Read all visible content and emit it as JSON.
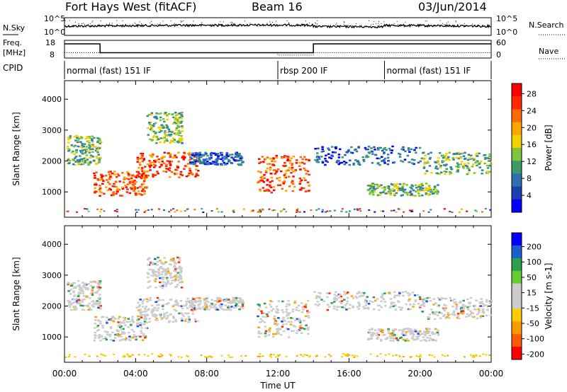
{
  "header": {
    "title": "Fort Hays West (fitACF)",
    "beam": "Beam 16",
    "date": "03/Jun/2014"
  },
  "chart_data": [
    {
      "type": "line",
      "name": "noise-panel",
      "left_label": "N.Sky",
      "right_label": "N.Search",
      "left_ticks": [
        "10^5",
        "10^0"
      ],
      "right_ticks": [
        "10^5",
        "10^0"
      ],
      "note": "N.Sky plotted as solid dotted trace; N.Search as dotted"
    },
    {
      "type": "line",
      "name": "freq-nave-panel",
      "left_label": "Freq.",
      "left_unit": "[MHz]",
      "left_ticks": [
        "18",
        "8"
      ],
      "right_label": "Nave",
      "right_ticks": [
        "60",
        "0"
      ],
      "freq_steps": [
        {
          "from_hour": 0,
          "to_hour": 2,
          "value": 16
        },
        {
          "from_hour": 2,
          "to_hour": 12,
          "value": 11
        },
        {
          "from_hour": 12,
          "to_hour": 14,
          "value": 11
        },
        {
          "from_hour": 14,
          "to_hour": 24,
          "value": 16
        }
      ],
      "nave_steps": [
        {
          "from_hour": 0,
          "to_hour": 12,
          "value": 18
        },
        {
          "from_hour": 12,
          "to_hour": 14,
          "value": 10
        },
        {
          "from_hour": 14,
          "to_hour": 24,
          "value": 18
        }
      ]
    },
    {
      "type": "table",
      "name": "cpid-panel",
      "label": "CPID",
      "segments": [
        {
          "from_hour": 0,
          "to_hour": 12,
          "text": "normal (fast) 151 IF"
        },
        {
          "from_hour": 12,
          "to_hour": 18,
          "text": "rbsp 200 IF"
        },
        {
          "from_hour": 18,
          "to_hour": 24,
          "text": "normal (fast) 151 IF"
        }
      ]
    },
    {
      "type": "heatmap",
      "name": "power",
      "ylabel": "Slant Range [km]",
      "yticks": [
        1000,
        2000,
        3000,
        4000
      ],
      "ylim": [
        180,
        4600
      ],
      "colorbar_label": "Power [dB]",
      "colorbar_ticks": [
        "4",
        "8",
        "12",
        "16",
        "20",
        "24",
        "28"
      ],
      "colorbar_colors": [
        "#0000ff",
        "#1a3fb0",
        "#2d6fb0",
        "#3a9a6a",
        "#7fc43a",
        "#f5d000",
        "#ffa500",
        "#ff6a00",
        "#ff2a00",
        "#ff0000"
      ]
    },
    {
      "type": "heatmap",
      "name": "velocity",
      "ylabel": "Slant Range [km]",
      "yticks": [
        1000,
        2000,
        3000,
        4000
      ],
      "ylim": [
        180,
        4600
      ],
      "colorbar_label": "Velocity [m s-1]",
      "colorbar_ticks": [
        "200",
        "100",
        "50",
        "15",
        "-15",
        "-50",
        "-100",
        "-200"
      ],
      "colorbar_colors": [
        "#0000ff",
        "#1a5fd0",
        "#2aa04a",
        "#66cc33",
        "#cccccc",
        "#cccccc",
        "#ffcc00",
        "#ff9900",
        "#ff5a00",
        "#ff0000"
      ]
    }
  ],
  "xaxis": {
    "label": "Time UT",
    "ticks": [
      "00:00",
      "04:00",
      "08:00",
      "12:00",
      "16:00",
      "20:00",
      "00:00"
    ]
  }
}
